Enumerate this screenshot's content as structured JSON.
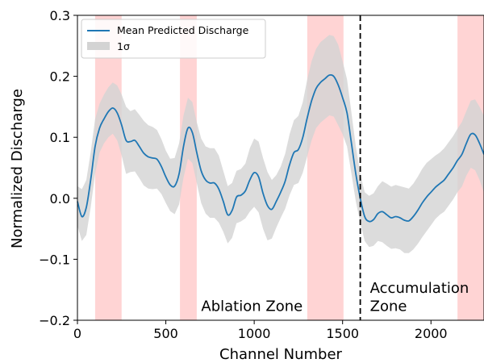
{
  "chart_data": {
    "type": "line",
    "title": "",
    "xlabel": "Channel Number",
    "ylabel": "Normalized Discharge",
    "xlim": [
      0,
      2300
    ],
    "ylim": [
      -0.2,
      0.3
    ],
    "xticks": [
      0,
      500,
      1000,
      1500,
      2000
    ],
    "xtick_labels": [
      "0",
      "500",
      "1000",
      "1500",
      "2000"
    ],
    "yticks": [
      -0.2,
      -0.1,
      0.0,
      0.1,
      0.2,
      0.3
    ],
    "ytick_labels": [
      "−0.2",
      "−0.1",
      "0.0",
      "0.1",
      "0.2",
      "0.3"
    ],
    "grid": false,
    "legend": {
      "placement": "top-left",
      "entries": [
        {
          "label": "Mean Predicted Discharge",
          "kind": "line",
          "color": "#1f77b4"
        },
        {
          "label": "1σ",
          "kind": "band",
          "color": "#d3d3d3"
        }
      ]
    },
    "highlight_color": "#ffcccc",
    "highlight_regions": [
      [
        100,
        250
      ],
      [
        580,
        675
      ],
      [
        1300,
        1505
      ],
      [
        2150,
        2300
      ]
    ],
    "divider": {
      "x": 1600,
      "color": "#000000",
      "style": "dashed"
    },
    "annotations": [
      {
        "text": "Ablation Zone",
        "x": 700,
        "y": -0.185
      },
      {
        "text": "Accumulation",
        "x": 1655,
        "y": -0.155
      },
      {
        "text": "Zone",
        "x": 1655,
        "y": -0.185
      }
    ],
    "series": [
      {
        "name": "Mean Predicted Discharge",
        "color": "#1f77b4",
        "x": [
          0,
          25,
          50,
          75,
          100,
          125,
          150,
          175,
          200,
          225,
          250,
          275,
          300,
          325,
          350,
          375,
          400,
          425,
          450,
          475,
          500,
          525,
          550,
          575,
          600,
          625,
          650,
          675,
          700,
          725,
          750,
          775,
          800,
          825,
          850,
          875,
          900,
          925,
          950,
          975,
          1000,
          1025,
          1050,
          1075,
          1100,
          1125,
          1150,
          1175,
          1200,
          1225,
          1250,
          1275,
          1300,
          1325,
          1350,
          1375,
          1400,
          1425,
          1450,
          1475,
          1500,
          1525,
          1550,
          1575,
          1600,
          1625,
          1650,
          1675,
          1700,
          1725,
          1750,
          1775,
          1800,
          1825,
          1850,
          1875,
          1900,
          1925,
          1950,
          1975,
          2000,
          2025,
          2050,
          2075,
          2100,
          2125,
          2150,
          2175,
          2200,
          2225,
          2250,
          2275,
          2300
        ],
        "y": [
          -0.005,
          -0.03,
          -0.015,
          0.03,
          0.085,
          0.115,
          0.13,
          0.142,
          0.148,
          0.14,
          0.12,
          0.095,
          0.093,
          0.095,
          0.085,
          0.074,
          0.068,
          0.066,
          0.064,
          0.052,
          0.035,
          0.022,
          0.02,
          0.04,
          0.085,
          0.115,
          0.108,
          0.075,
          0.045,
          0.03,
          0.025,
          0.025,
          0.015,
          -0.005,
          -0.027,
          -0.02,
          0.002,
          0.005,
          0.012,
          0.03,
          0.042,
          0.035,
          0.008,
          -0.012,
          -0.018,
          -0.005,
          0.01,
          0.028,
          0.055,
          0.075,
          0.08,
          0.1,
          0.132,
          0.16,
          0.18,
          0.19,
          0.196,
          0.202,
          0.2,
          0.186,
          0.165,
          0.14,
          0.09,
          0.04,
          0.0,
          -0.03,
          -0.038,
          -0.035,
          -0.025,
          -0.022,
          -0.027,
          -0.032,
          -0.03,
          -0.032,
          -0.036,
          -0.037,
          -0.03,
          -0.02,
          -0.008,
          0.002,
          0.01,
          0.018,
          0.024,
          0.03,
          0.04,
          0.05,
          0.062,
          0.072,
          0.09,
          0.105,
          0.104,
          0.09,
          0.072
        ]
      },
      {
        "name": "1σ",
        "color": "#d3d3d3",
        "x": [
          0,
          25,
          50,
          75,
          100,
          125,
          150,
          175,
          200,
          225,
          250,
          275,
          300,
          325,
          350,
          375,
          400,
          425,
          450,
          475,
          500,
          525,
          550,
          575,
          600,
          625,
          650,
          675,
          700,
          725,
          750,
          775,
          800,
          825,
          850,
          875,
          900,
          925,
          950,
          975,
          1000,
          1025,
          1050,
          1075,
          1100,
          1125,
          1150,
          1175,
          1200,
          1225,
          1250,
          1275,
          1300,
          1325,
          1350,
          1375,
          1400,
          1425,
          1450,
          1475,
          1500,
          1525,
          1550,
          1575,
          1600,
          1625,
          1650,
          1675,
          1700,
          1725,
          1750,
          1775,
          1800,
          1825,
          1850,
          1875,
          1900,
          1925,
          1950,
          1975,
          2000,
          2025,
          2050,
          2075,
          2100,
          2125,
          2150,
          2175,
          2200,
          2225,
          2250,
          2275,
          2300
        ],
        "upper": [
          0.02,
          0.015,
          0.03,
          0.075,
          0.13,
          0.155,
          0.17,
          0.182,
          0.19,
          0.185,
          0.17,
          0.15,
          0.143,
          0.146,
          0.137,
          0.127,
          0.12,
          0.117,
          0.112,
          0.097,
          0.078,
          0.065,
          0.066,
          0.09,
          0.136,
          0.165,
          0.158,
          0.125,
          0.098,
          0.085,
          0.082,
          0.082,
          0.07,
          0.045,
          0.02,
          0.025,
          0.045,
          0.048,
          0.057,
          0.082,
          0.098,
          0.093,
          0.066,
          0.043,
          0.03,
          0.038,
          0.052,
          0.073,
          0.105,
          0.128,
          0.135,
          0.158,
          0.195,
          0.225,
          0.245,
          0.256,
          0.262,
          0.268,
          0.266,
          0.252,
          0.225,
          0.195,
          0.14,
          0.085,
          0.04,
          0.01,
          0.004,
          0.008,
          0.02,
          0.028,
          0.024,
          0.019,
          0.022,
          0.02,
          0.018,
          0.016,
          0.024,
          0.035,
          0.048,
          0.058,
          0.064,
          0.07,
          0.075,
          0.082,
          0.092,
          0.102,
          0.114,
          0.125,
          0.143,
          0.16,
          0.162,
          0.15,
          0.135
        ]
      }
    ],
    "lower": [
      -0.045,
      -0.07,
      -0.06,
      -0.015,
      0.04,
      0.075,
      0.09,
      0.1,
      0.106,
      0.095,
      0.07,
      0.04,
      0.043,
      0.044,
      0.033,
      0.021,
      0.016,
      0.015,
      0.016,
      0.007,
      -0.008,
      -0.021,
      -0.026,
      -0.01,
      0.034,
      0.065,
      0.058,
      0.025,
      -0.008,
      -0.025,
      -0.032,
      -0.032,
      -0.04,
      -0.055,
      -0.074,
      -0.065,
      -0.041,
      -0.038,
      -0.033,
      -0.022,
      -0.014,
      -0.023,
      -0.05,
      -0.069,
      -0.066,
      -0.048,
      -0.032,
      -0.017,
      0.005,
      0.022,
      0.025,
      0.042,
      0.069,
      0.095,
      0.115,
      0.124,
      0.13,
      0.136,
      0.134,
      0.12,
      0.105,
      0.085,
      0.04,
      -0.005,
      -0.04,
      -0.07,
      -0.08,
      -0.078,
      -0.07,
      -0.072,
      -0.078,
      -0.083,
      -0.082,
      -0.084,
      -0.09,
      -0.09,
      -0.084,
      -0.075,
      -0.064,
      -0.054,
      -0.044,
      -0.034,
      -0.027,
      -0.022,
      -0.012,
      -0.002,
      0.01,
      0.019,
      0.037,
      0.05,
      0.046,
      0.03,
      0.009
    ]
  }
}
